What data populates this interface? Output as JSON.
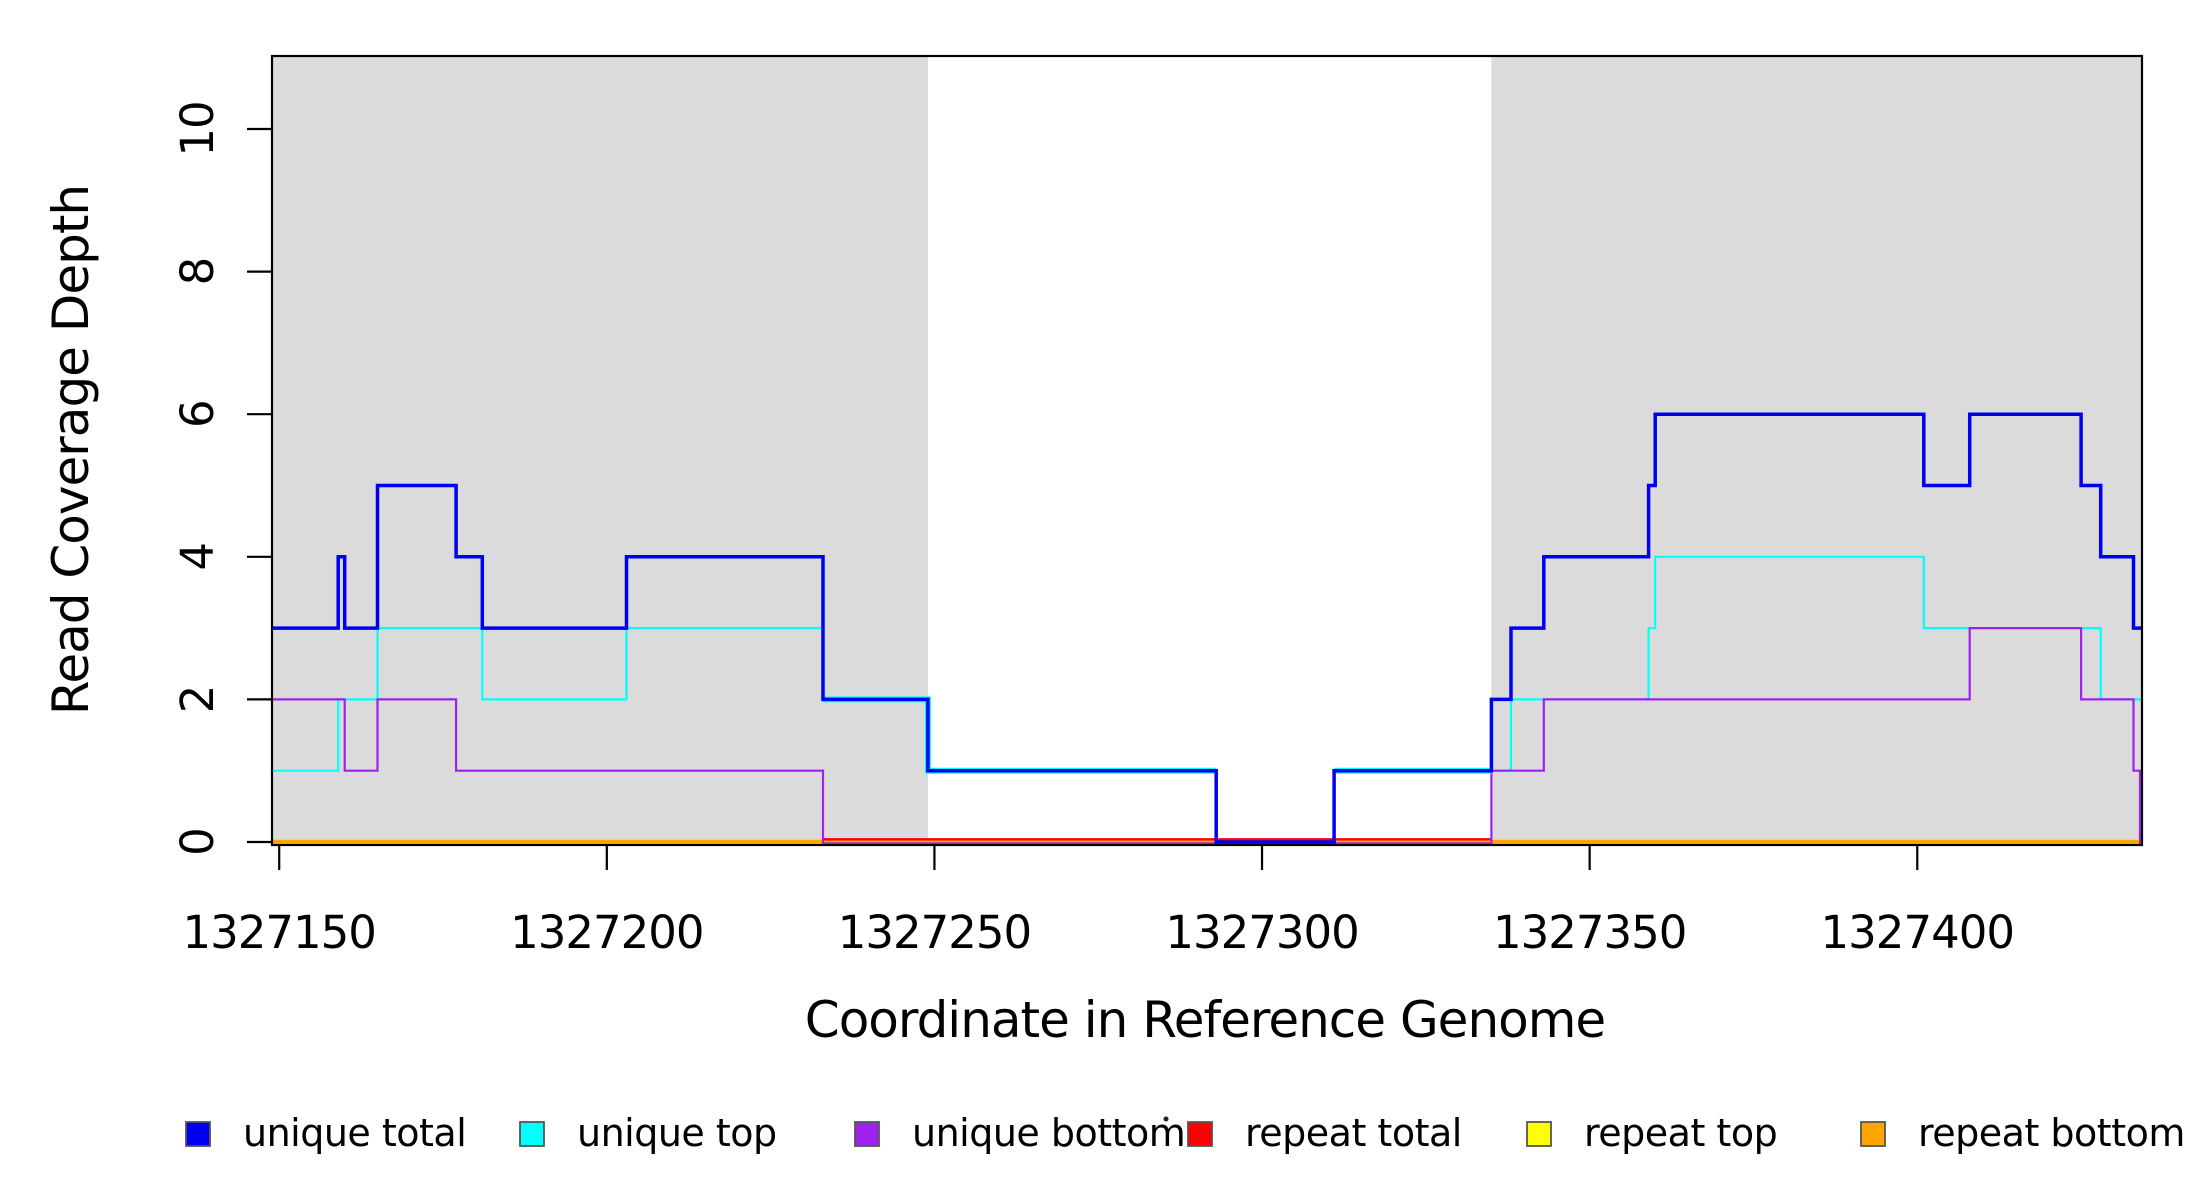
{
  "figure": {
    "y_axis": {
      "title": "Read Coverage Depth",
      "tick_values": [
        0,
        2,
        4,
        6,
        8,
        10
      ],
      "tick_labels": [
        "0",
        "2",
        "4",
        "6",
        "8",
        "10"
      ],
      "range": [
        0,
        11.05
      ]
    },
    "x_axis": {
      "title": "Coordinate in Reference Genome",
      "tick_values": [
        1327150,
        1327200,
        1327250,
        1327300,
        1327350,
        1327400
      ],
      "tick_labels": [
        "1327150",
        "1327200",
        "1327250",
        "1327300",
        "1327350",
        "1327400"
      ],
      "range": [
        1327148.9,
        1327434.3
      ]
    },
    "shaded_regions": [
      {
        "start": 1327148.9,
        "end": 1327249,
        "color": "#DBDBDB"
      },
      {
        "start": 1327335,
        "end": 1327434.3,
        "color": "#DBDBDB"
      }
    ],
    "legend": [
      {
        "label": "unique total",
        "color": "#0000EE"
      },
      {
        "label": "unique top",
        "color": "#00FFFF"
      },
      {
        "label": "unique bottom",
        "color": "#A020F0"
      },
      {
        "label": "repeat total",
        "color": "#FF0000"
      },
      {
        "label": "repeat top",
        "color": "#FFFF00"
      },
      {
        "label": "repeat bottom",
        "color": "#FFA500"
      }
    ]
  },
  "chart_data": {
    "type": "step-line",
    "title": "",
    "xlabel": "Coordinate in Reference Genome",
    "ylabel": "Read Coverage Depth",
    "x_start": 1327148.9,
    "x_end": 1327434.3,
    "ylim": [
      0,
      11.05
    ],
    "grid": false,
    "legend_position": "bottom",
    "note": "step values change at genome coordinates; steps = [coordinate, new_value]",
    "series": [
      {
        "name": "unique total",
        "color": "#0000EE",
        "width": 3.5,
        "start_value": 3,
        "steps": [
          [
            1327159,
            4
          ],
          [
            1327160,
            3
          ],
          [
            1327165,
            5
          ],
          [
            1327177,
            4
          ],
          [
            1327181,
            3
          ],
          [
            1327203,
            4
          ],
          [
            1327233,
            2
          ],
          [
            1327249,
            1
          ],
          [
            1327293,
            0
          ],
          [
            1327311,
            1
          ],
          [
            1327335,
            2
          ],
          [
            1327338,
            3
          ],
          [
            1327343,
            4
          ],
          [
            1327359,
            5
          ],
          [
            1327360,
            6
          ],
          [
            1327401,
            5
          ],
          [
            1327408,
            6
          ],
          [
            1327425,
            5
          ],
          [
            1327428,
            4
          ],
          [
            1327433,
            3
          ]
        ]
      },
      {
        "name": "unique top",
        "color": "#00FFFF",
        "width": 2.2,
        "start_value": 1,
        "steps": [
          [
            1327159,
            2
          ],
          [
            1327165,
            3
          ],
          [
            1327181,
            2
          ],
          [
            1327203,
            3
          ],
          [
            1327233,
            2
          ],
          [
            1327249,
            1
          ],
          [
            1327293,
            0
          ],
          [
            1327311,
            1
          ],
          [
            1327338,
            2
          ],
          [
            1327359,
            3
          ],
          [
            1327360,
            4
          ],
          [
            1327401,
            3
          ],
          [
            1327428,
            2
          ]
        ]
      },
      {
        "name": "unique bottom",
        "color": "#A020F0",
        "width": 2.2,
        "start_value": 2,
        "steps": [
          [
            1327160,
            1
          ],
          [
            1327165,
            2
          ],
          [
            1327177,
            1
          ],
          [
            1327233,
            0
          ],
          [
            1327335,
            1
          ],
          [
            1327343,
            2
          ],
          [
            1327408,
            3
          ],
          [
            1327425,
            2
          ],
          [
            1327433,
            1
          ],
          [
            1327434,
            0
          ]
        ]
      },
      {
        "name": "repeat total",
        "color": "#FF0000",
        "width": 2.4,
        "start_value": 0,
        "steps": []
      },
      {
        "name": "repeat top",
        "color": "#FFFF00",
        "width": 2.0,
        "start_value": 0,
        "steps": []
      },
      {
        "name": "repeat bottom",
        "color": "#FFA500",
        "width": 3.5,
        "start_value": 0,
        "steps": []
      }
    ]
  }
}
